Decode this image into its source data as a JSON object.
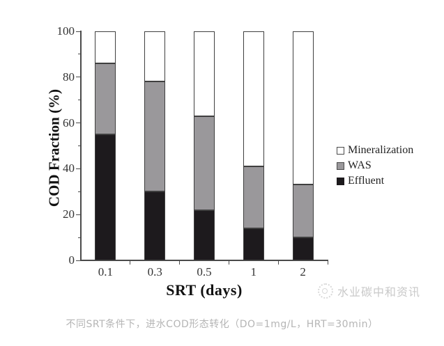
{
  "chart_data": {
    "type": "bar",
    "stacked": true,
    "title": "",
    "xlabel": "SRT (days)",
    "ylabel": "COD Fraction (%)",
    "categories": [
      "0.1",
      "0.3",
      "0.5",
      "1",
      "2"
    ],
    "series": [
      {
        "name": "Effluent",
        "color": "#1d1a1d",
        "values": [
          55,
          30,
          22,
          14,
          10
        ]
      },
      {
        "name": "WAS",
        "color": "#9a989b",
        "values": [
          31,
          48,
          41,
          27,
          23
        ]
      },
      {
        "name": "Mineralization",
        "color": "#ffffff",
        "values": [
          14,
          22,
          37,
          59,
          67
        ]
      }
    ],
    "stack_tops": {
      "effluent_top": [
        55,
        30,
        22,
        14,
        10
      ],
      "was_top": [
        86,
        78,
        63,
        41,
        33
      ],
      "total": 100
    },
    "ylim": [
      0,
      100
    ],
    "yticks": [
      0,
      20,
      40,
      60,
      80,
      100
    ],
    "yticks_minor": [
      10,
      30,
      50,
      70,
      90
    ],
    "grid": false,
    "legend_position": "right"
  },
  "legend": {
    "items": [
      {
        "label": "Mineralization",
        "swatch": "#ffffff"
      },
      {
        "label": "WAS",
        "swatch": "#9a989b"
      },
      {
        "label": "Effluent",
        "swatch": "#1d1a1d"
      }
    ]
  },
  "watermark": {
    "text": "水业碳中和资讯",
    "icon": "panda-logo-icon"
  },
  "caption": {
    "text": "不同SRT条件下，进水COD形态转化（DO=1mg/L，HRT=30min）"
  },
  "colors": {
    "axis": "#4a4a4a",
    "tick_label": "#333333",
    "bar_border": "#3f3f3f",
    "caption": "#b5b5b5",
    "watermark": "#c9c9c9",
    "background": "#ffffff"
  }
}
